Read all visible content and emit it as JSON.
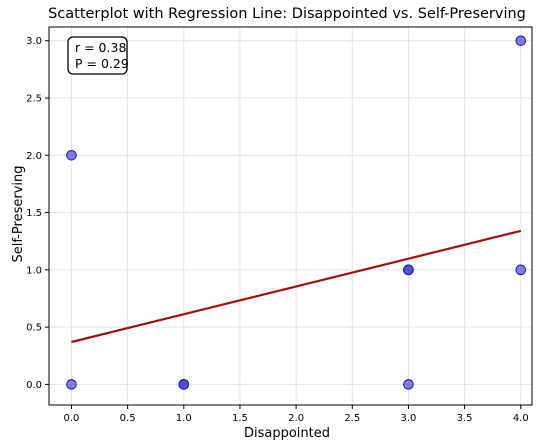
{
  "chart_data": {
    "type": "scatter",
    "title": "Scatterplot with Regression Line: Disappointed vs. Self-Preserving",
    "xlabel": "Disappointed",
    "ylabel": "Self-Preserving",
    "xlim": [
      -0.2,
      4.1
    ],
    "ylim": [
      -0.18,
      3.12
    ],
    "x_ticks": [
      0.0,
      0.5,
      1.0,
      1.5,
      2.0,
      2.5,
      3.0,
      3.5,
      4.0
    ],
    "y_ticks": [
      0.0,
      0.5,
      1.0,
      1.5,
      2.0,
      2.5,
      3.0
    ],
    "x_tick_labels": [
      "0.0",
      "0.5",
      "1.0",
      "1.5",
      "2.0",
      "2.5",
      "3.0",
      "3.5",
      "4.0"
    ],
    "y_tick_labels": [
      "0.0",
      "0.5",
      "1.0",
      "1.5",
      "2.0",
      "2.5",
      "3.0"
    ],
    "grid": true,
    "points": [
      {
        "x": 0,
        "y": 2
      },
      {
        "x": 0,
        "y": 0
      },
      {
        "x": 1,
        "y": 0
      },
      {
        "x": 1,
        "y": 0
      },
      {
        "x": 3,
        "y": 1
      },
      {
        "x": 3,
        "y": 1
      },
      {
        "x": 3,
        "y": 0
      },
      {
        "x": 4,
        "y": 3
      },
      {
        "x": 4,
        "y": 1
      }
    ],
    "regression_line": {
      "x": [
        0,
        4
      ],
      "y": [
        0.37,
        1.34
      ]
    },
    "annotation": {
      "r_text": "r = 0.38",
      "p_text": "P = 0.29"
    },
    "colors": {
      "points": "#3a3ae6",
      "points_edge": "#1a1aa0",
      "line": "#a50d0d",
      "grid": "#e3e3e3"
    }
  }
}
